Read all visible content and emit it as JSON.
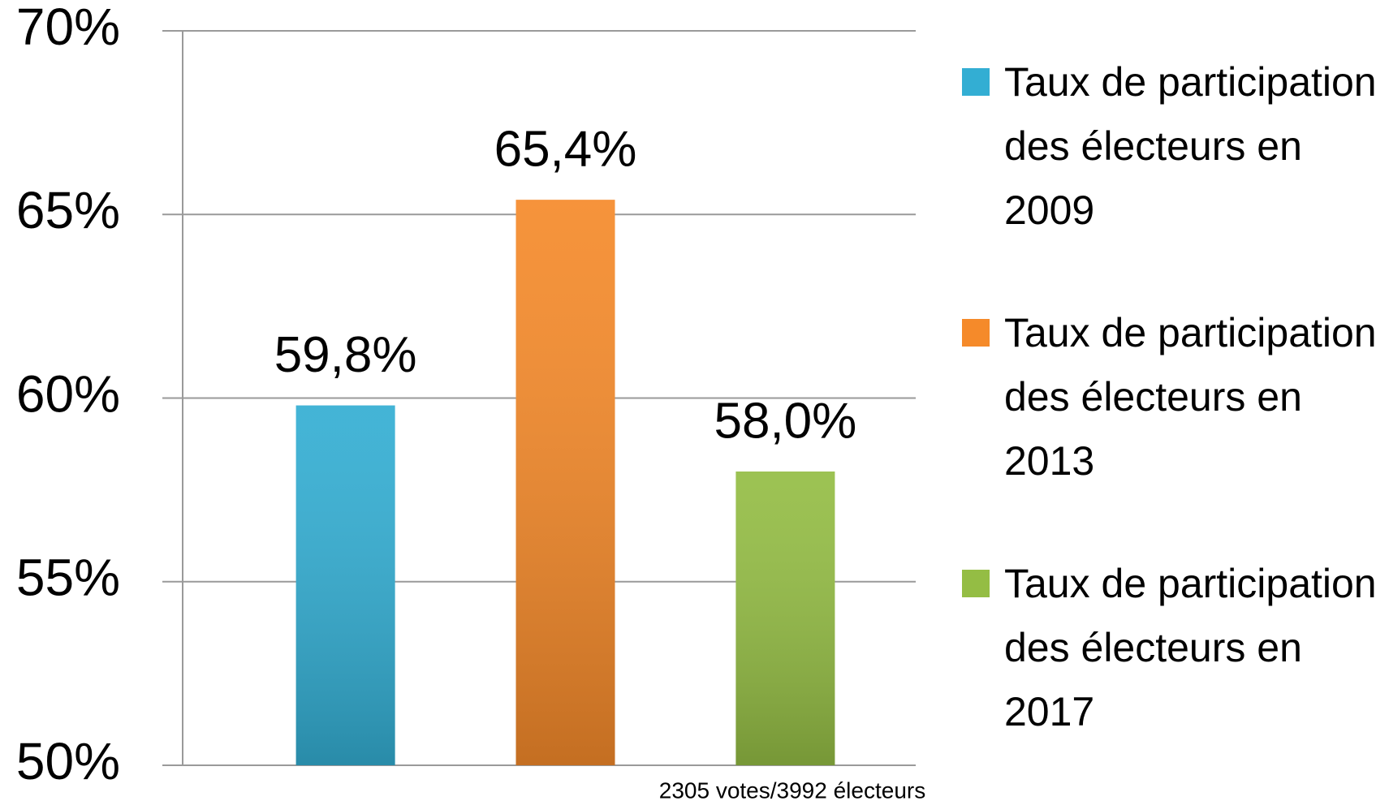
{
  "chart_data": {
    "type": "bar",
    "categories": [
      null
    ],
    "series": [
      {
        "name": "Taux de participation des électeurs en 2009",
        "color": "#33aed3",
        "values": [
          59.8
        ],
        "value_labels": [
          "59,8%"
        ]
      },
      {
        "name": "Taux de participation des électeurs en 2013",
        "color": "#f58a2a",
        "values": [
          65.4
        ],
        "value_labels": [
          "65,4%"
        ]
      },
      {
        "name": "Taux de participation des électeurs en 2017",
        "color": "#94bd44",
        "values": [
          58.0
        ],
        "value_labels": [
          "58,0%"
        ]
      }
    ],
    "ylim": [
      50,
      70
    ],
    "yticks": [
      {
        "value": 50,
        "label": "50%"
      },
      {
        "value": 55,
        "label": "55%"
      },
      {
        "value": 60,
        "label": "60%"
      },
      {
        "value": 65,
        "label": "65%"
      },
      {
        "value": 70,
        "label": "70%"
      }
    ],
    "grid": true,
    "legend": "right",
    "annotation": "2305 votes/3992 électeurs"
  }
}
